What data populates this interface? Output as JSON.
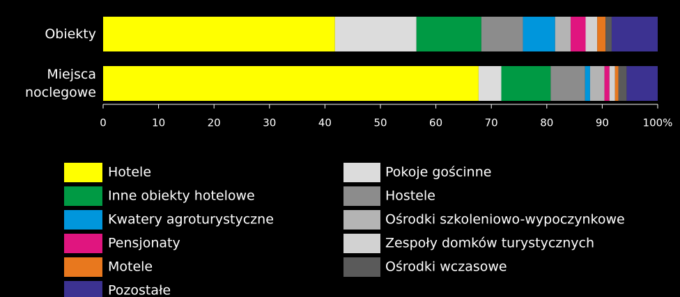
{
  "chart_data": {
    "type": "stacked-bar-horizontal",
    "categories": [
      "Obiekty",
      "Miejsca noclegowe"
    ],
    "series": [
      {
        "name": "Hotele",
        "color": "#ffff00",
        "values": [
          41.8,
          67.7
        ]
      },
      {
        "name": "Pokoje gościnne",
        "color": "#dcdcdc",
        "values": [
          14.7,
          4.1
        ]
      },
      {
        "name": "Inne obiekty hotelowe",
        "color": "#009a44",
        "values": [
          11.7,
          8.9
        ]
      },
      {
        "name": "Hostele",
        "color": "#8c8c8c",
        "values": [
          7.5,
          6.2
        ]
      },
      {
        "name": "Kwatery agroturystyczne",
        "color": "#0096dc",
        "values": [
          5.8,
          0.9
        ]
      },
      {
        "name": "Ośrodki szkoleniowo-wypoczynkowe",
        "color": "#b4b4b4",
        "values": [
          2.8,
          2.6
        ]
      },
      {
        "name": "Pensjonaty",
        "color": "#e0157f",
        "values": [
          2.7,
          0.9
        ]
      },
      {
        "name": "Zespoły domków turystycznych",
        "color": "#d2d2d2",
        "values": [
          2.1,
          1.0
        ]
      },
      {
        "name": "Motele",
        "color": "#e8781e",
        "values": [
          1.5,
          0.6
        ]
      },
      {
        "name": "Ośrodki wczasowe",
        "color": "#5a5a5a",
        "values": [
          1.1,
          1.5
        ]
      },
      {
        "name": "Pozostałe",
        "color": "#3c3291",
        "values": [
          8.3,
          5.6
        ]
      }
    ],
    "xlim": [
      0,
      100
    ],
    "xticks": [
      0,
      10,
      20,
      30,
      40,
      50,
      60,
      70,
      80,
      90,
      {
        "value": 100,
        "label": "100%"
      }
    ]
  }
}
